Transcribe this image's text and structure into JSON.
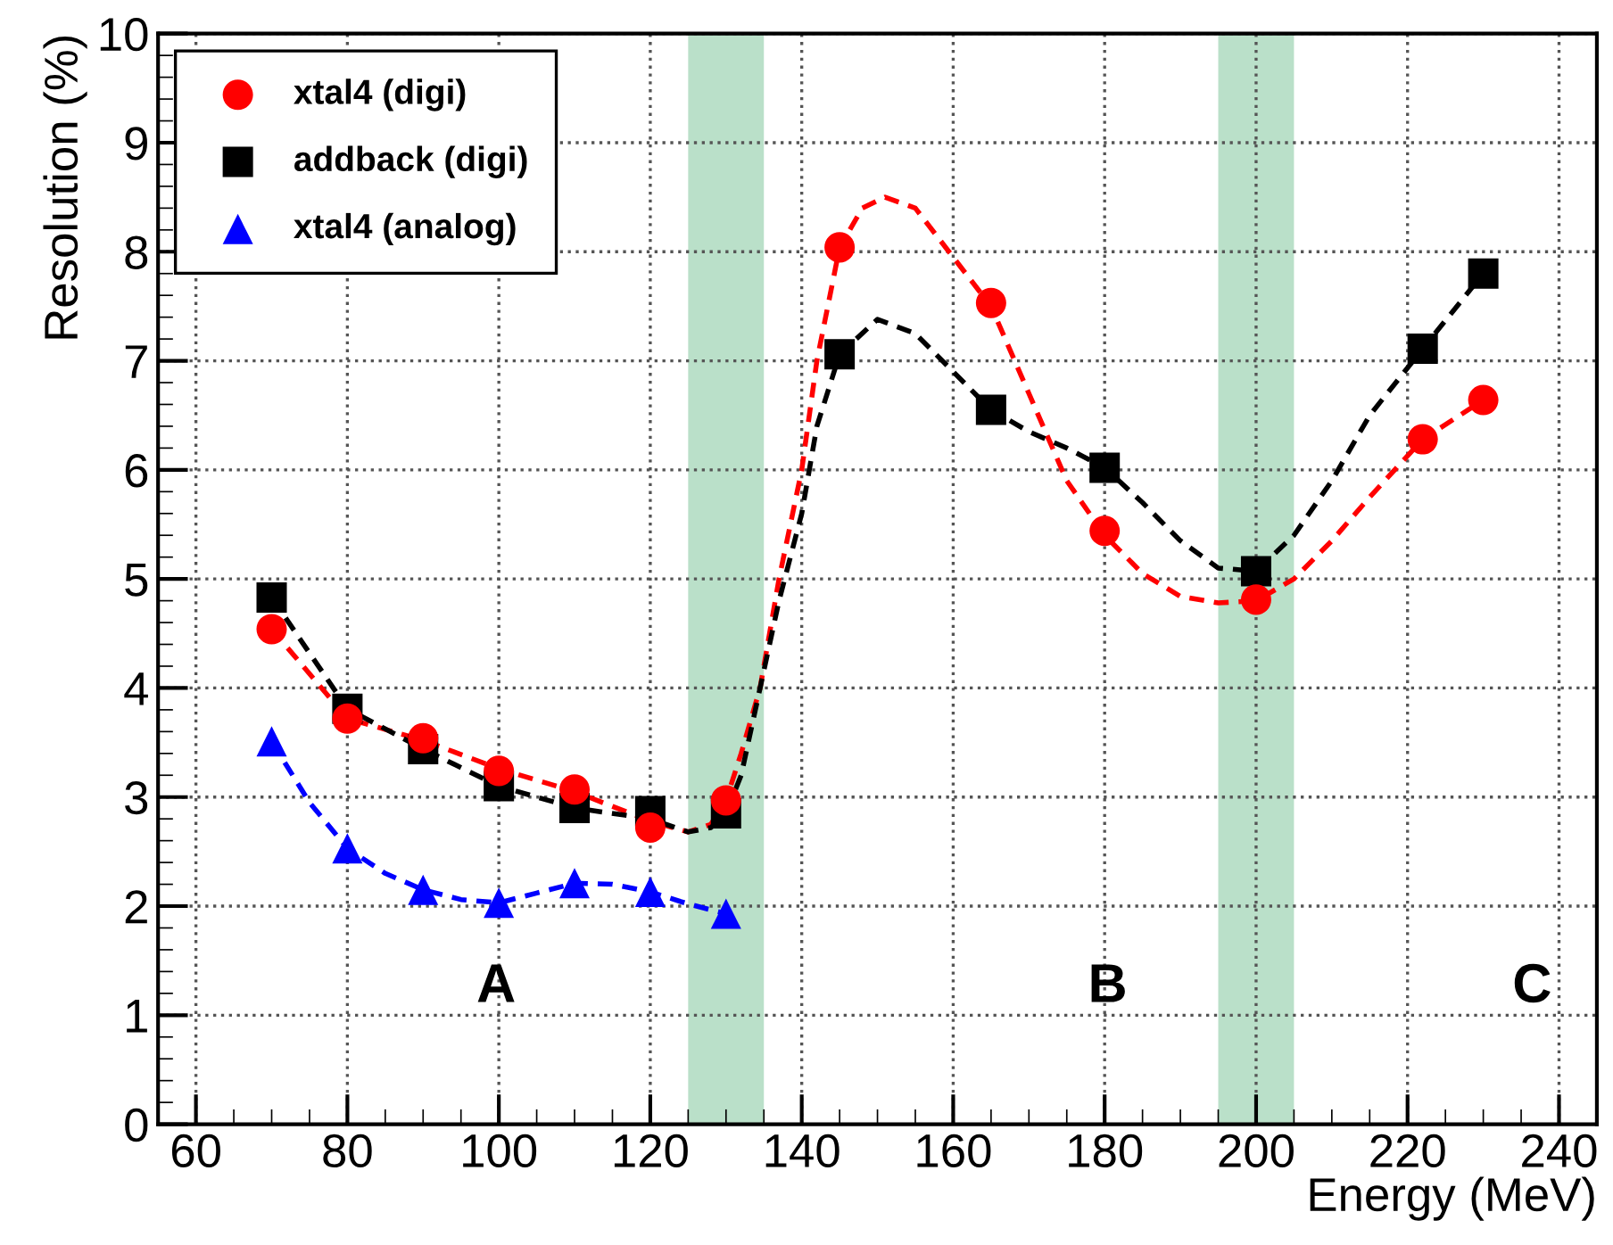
{
  "chart_data": {
    "type": "scatter",
    "xlabel": "Energy (MeV)",
    "ylabel": "Resolution (%)",
    "xlim": [
      55,
      245
    ],
    "xticks": [
      60,
      80,
      100,
      120,
      140,
      160,
      180,
      200,
      220,
      240
    ],
    "ylim": [
      0,
      10
    ],
    "yticks": [
      0,
      1,
      2,
      3,
      4,
      5,
      6,
      7,
      8,
      9,
      10
    ],
    "grid": true,
    "legend": "top left",
    "bands": [
      {
        "axis": "x",
        "from": 125,
        "to": 135,
        "color": "#a9d8bb"
      },
      {
        "axis": "x",
        "from": 195,
        "to": 205,
        "color": "#a9d8bb"
      }
    ],
    "annotations": [
      "A",
      "B",
      "C"
    ],
    "series": [
      {
        "type": "line",
        "color": "#ff0000",
        "line_style": "dashed",
        "marker": "none",
        "x": [
          70,
          80,
          90,
          100,
          110,
          120,
          125,
          128,
          130,
          132,
          134.5,
          137,
          140,
          142,
          145,
          148,
          151,
          155,
          160,
          165,
          170,
          175,
          180,
          185,
          190,
          195,
          200,
          205,
          210,
          215,
          222,
          230
        ],
        "values": [
          4.54,
          3.72,
          3.52,
          3.26,
          3.05,
          2.78,
          2.68,
          2.75,
          2.97,
          3.4,
          4.0,
          5.0,
          6.0,
          7.0,
          8.04,
          8.4,
          8.5,
          8.4,
          7.95,
          7.5,
          6.7,
          5.9,
          5.4,
          5.05,
          4.84,
          4.78,
          4.8,
          5.0,
          5.35,
          5.75,
          6.28,
          6.64
        ]
      },
      {
        "type": "line",
        "color": "#000000",
        "line_style": "dashed",
        "marker": "none",
        "x": [
          70,
          80,
          90,
          100,
          110,
          120,
          125,
          128,
          130,
          132,
          134.5,
          137,
          140,
          142,
          145,
          150,
          155,
          160,
          165,
          170,
          175,
          180,
          185,
          190,
          195,
          200,
          205,
          210,
          215,
          222,
          230
        ],
        "values": [
          4.83,
          3.81,
          3.44,
          3.1,
          2.9,
          2.8,
          2.68,
          2.72,
          2.85,
          3.2,
          4.0,
          4.8,
          5.6,
          6.4,
          7.06,
          7.38,
          7.25,
          6.9,
          6.55,
          6.35,
          6.2,
          6.02,
          5.7,
          5.35,
          5.1,
          5.07,
          5.4,
          5.9,
          6.5,
          7.11,
          7.8
        ]
      },
      {
        "type": "line",
        "color": "#0000ff",
        "line_style": "dashed",
        "marker": "none",
        "x": [
          70,
          75,
          80,
          85,
          90,
          95,
          100,
          105,
          110,
          115,
          120,
          125,
          130
        ],
        "values": [
          3.51,
          2.95,
          2.53,
          2.3,
          2.15,
          2.06,
          2.03,
          2.12,
          2.21,
          2.2,
          2.13,
          2.02,
          1.93
        ]
      },
      {
        "name": "xtal4 (digi)",
        "color": "#ff0000",
        "marker": "circle",
        "x": [
          70,
          80,
          90,
          100,
          110,
          120,
          130,
          145,
          165,
          180,
          200,
          222,
          230
        ],
        "values": [
          4.54,
          3.72,
          3.54,
          3.24,
          3.07,
          2.72,
          2.97,
          8.04,
          7.53,
          5.44,
          4.81,
          6.28,
          6.64
        ]
      },
      {
        "name": "addback (digi)",
        "color": "#000000",
        "marker": "square",
        "x": [
          70,
          80,
          90,
          100,
          110,
          120,
          130,
          145,
          165,
          180,
          200,
          222,
          230
        ],
        "values": [
          4.83,
          3.81,
          3.44,
          3.1,
          2.9,
          2.87,
          2.85,
          7.06,
          6.55,
          6.02,
          5.07,
          7.11,
          7.8
        ]
      },
      {
        "name": "xtal4 (analog)",
        "color": "#0000ff",
        "marker": "triangle",
        "x": [
          70,
          80,
          90,
          100,
          110,
          120,
          130
        ],
        "values": [
          3.51,
          2.53,
          2.15,
          2.03,
          2.21,
          2.13,
          1.93
        ]
      }
    ]
  }
}
